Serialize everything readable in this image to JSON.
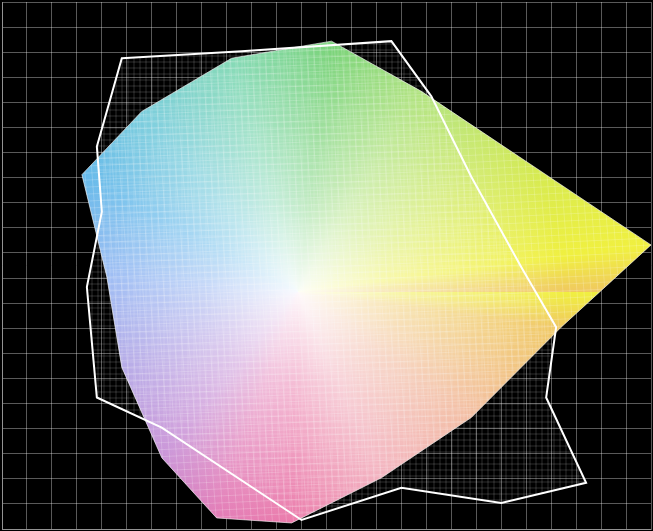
{
  "chart_data": {
    "type": "polygon",
    "grid": true,
    "tick_labels": false,
    "xlim": [
      0,
      650
    ],
    "ylim": [
      0,
      525
    ],
    "xticks": [
      0,
      25,
      50,
      75,
      100,
      125,
      150,
      175,
      200,
      225,
      250,
      275,
      300,
      325,
      350,
      375,
      400,
      425,
      450,
      475,
      500,
      525,
      550,
      575,
      600,
      625,
      650
    ],
    "yticks": [
      0,
      25,
      50,
      75,
      100,
      125,
      150,
      175,
      200,
      225,
      250,
      275,
      300,
      325,
      350,
      375,
      400,
      425,
      450,
      475,
      500,
      525
    ],
    "series": [
      {
        "color": "#ffffff",
        "line_style": "solid",
        "x": [
          120,
          240,
          390,
          430,
          470,
          520,
          555,
          545,
          585,
          500,
          400,
          300,
          160,
          95,
          85,
          100,
          95
        ],
        "values": [
          469,
          476,
          486,
          431,
          351,
          261,
          201,
          131,
          46,
          26,
          41,
          9,
          101,
          131,
          241,
          316,
          381
        ]
      },
      {
        "line_style": "solid",
        "x": [
          80,
          140,
          230,
          330,
          420,
          650,
          560,
          470,
          380,
          290,
          215,
          160,
          120,
          105
        ],
        "values": [
          353,
          416,
          469,
          486,
          436,
          283,
          201,
          111,
          51,
          6,
          11,
          71,
          161,
          251
        ],
        "colors": [
          "#5ab4e8",
          "#6cc8d8",
          "#7ad6b0",
          "#70d070",
          "#a8e070",
          "#f0f040",
          "#f0c860",
          "#f0b090",
          "#f0a0b0",
          "#e86aa0",
          "#e070b0",
          "#c080d0",
          "#a090e0",
          "#80a8f0"
        ]
      }
    ]
  }
}
